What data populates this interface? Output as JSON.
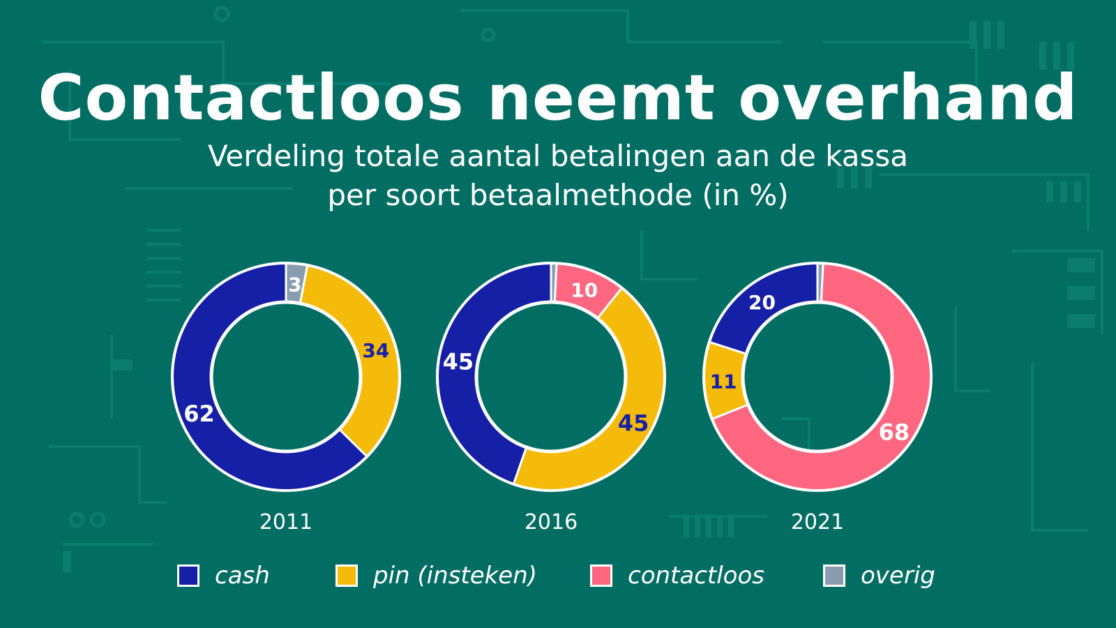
{
  "title": "Contactloos neemt overhand",
  "subtitle": {
    "line1": "Verdeling totale aantal betalingen aan de kassa",
    "line2": "per soort betaalmethode (in %)"
  },
  "colors": {
    "background": "#026e63",
    "cash": "#1520a6",
    "pin": "#f5bb0b",
    "contactloos": "#ff6680",
    "overig": "#8a9cb0",
    "outline": "#ffffff"
  },
  "legend": [
    {
      "key": "cash",
      "label": "cash"
    },
    {
      "key": "pin",
      "label": "pin (insteken)"
    },
    {
      "key": "contactloos",
      "label": "contactloos"
    },
    {
      "key": "overig",
      "label": "overig"
    }
  ],
  "chart_data": {
    "type": "pie",
    "variant": "donut",
    "title": "Contactloos neemt overhand",
    "subtitle": "Verdeling totale aantal betalingen aan de kassa per soort betaalmethode (in %)",
    "legend_position": "bottom",
    "charts": [
      {
        "year": "2011",
        "slices": [
          {
            "category": "overig",
            "value": 3,
            "label": "3"
          },
          {
            "category": "pin",
            "value": 34,
            "label": "34"
          },
          {
            "category": "contactloos",
            "value": 0,
            "label": ""
          },
          {
            "category": "cash",
            "value": 62,
            "label": "62"
          }
        ]
      },
      {
        "year": "2016",
        "slices": [
          {
            "category": "overig",
            "value": 0.8,
            "label": ""
          },
          {
            "category": "contactloos",
            "value": 10,
            "label": "10"
          },
          {
            "category": "pin",
            "value": 45,
            "label": "45"
          },
          {
            "category": "cash",
            "value": 45,
            "label": "45"
          }
        ]
      },
      {
        "year": "2021",
        "slices": [
          {
            "category": "overig",
            "value": 0.8,
            "label": ""
          },
          {
            "category": "contactloos",
            "value": 68,
            "label": "68"
          },
          {
            "category": "pin",
            "value": 11,
            "label": "11"
          },
          {
            "category": "cash",
            "value": 20,
            "label": "20"
          }
        ]
      }
    ]
  }
}
